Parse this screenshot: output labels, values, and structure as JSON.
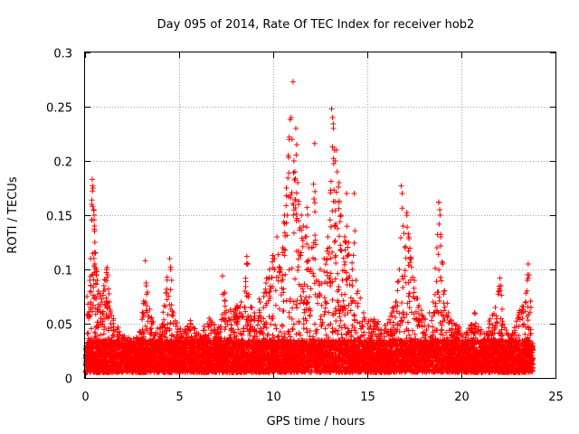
{
  "chart_data": {
    "type": "scatter",
    "title": "Day 095 of 2014, Rate Of TEC Index for receiver hob2",
    "xlabel": "GPS time / hours",
    "ylabel": "ROTI / TECUs",
    "xlim": [
      0,
      25
    ],
    "ylim": [
      0,
      0.3
    ],
    "x_ticks": [
      0,
      5,
      10,
      15,
      20,
      25
    ],
    "y_ticks": [
      0,
      0.05,
      0.1,
      0.15,
      0.2,
      0.25,
      0.3
    ],
    "x_tick_labels": [
      "0",
      "5",
      "10",
      "15",
      "20",
      "25"
    ],
    "y_tick_labels": [
      "0",
      "0.05",
      "0.1",
      "0.15",
      "0.2",
      "0.25",
      "0.3"
    ],
    "grid": true,
    "marker": "plus",
    "color": "#ff0000",
    "series": [
      {
        "points": [
          [
            0.1,
            0.075
          ],
          [
            0.15,
            0.068
          ],
          [
            0.2,
            0.055
          ],
          [
            0.25,
            0.09
          ],
          [
            0.3,
            0.11
          ],
          [
            0.35,
            0.16
          ],
          [
            0.38,
            0.183
          ],
          [
            0.4,
            0.177
          ],
          [
            0.42,
            0.175
          ],
          [
            0.45,
            0.155
          ],
          [
            0.48,
            0.15
          ],
          [
            0.5,
            0.14
          ],
          [
            0.52,
            0.125
          ],
          [
            0.55,
            0.115
          ],
          [
            0.6,
            0.1
          ],
          [
            0.65,
            0.09
          ],
          [
            0.7,
            0.08
          ],
          [
            0.8,
            0.075
          ],
          [
            0.9,
            0.07
          ],
          [
            1.0,
            0.085
          ],
          [
            1.1,
            0.09
          ],
          [
            1.15,
            0.1
          ],
          [
            1.2,
            0.095
          ],
          [
            1.25,
            0.082
          ],
          [
            1.3,
            0.07
          ],
          [
            1.35,
            0.06
          ],
          [
            1.5,
            0.05
          ],
          [
            1.7,
            0.045
          ],
          [
            2.0,
            0.035
          ],
          [
            2.5,
            0.03
          ],
          [
            3.0,
            0.04
          ],
          [
            3.2,
            0.108
          ],
          [
            3.25,
            0.085
          ],
          [
            3.5,
            0.055
          ],
          [
            3.6,
            0.05
          ],
          [
            4.0,
            0.045
          ],
          [
            4.5,
            0.11
          ],
          [
            4.55,
            0.1
          ],
          [
            4.6,
            0.09
          ],
          [
            4.7,
            0.06
          ],
          [
            5.0,
            0.04
          ],
          [
            5.5,
            0.045
          ],
          [
            5.6,
            0.05
          ],
          [
            6.0,
            0.035
          ],
          [
            6.5,
            0.05
          ],
          [
            6.6,
            0.055
          ],
          [
            7.0,
            0.04
          ],
          [
            7.2,
            0.045
          ],
          [
            7.3,
            0.094
          ],
          [
            7.5,
            0.06
          ],
          [
            8.0,
            0.06
          ],
          [
            8.3,
            0.07
          ],
          [
            8.5,
            0.08
          ],
          [
            8.6,
            0.112
          ],
          [
            8.65,
            0.105
          ],
          [
            8.8,
            0.065
          ],
          [
            9.0,
            0.06
          ],
          [
            9.3,
            0.07
          ],
          [
            9.5,
            0.075
          ],
          [
            9.8,
            0.1
          ],
          [
            10.0,
            0.11
          ],
          [
            10.2,
            0.13
          ],
          [
            10.4,
            0.1
          ],
          [
            10.5,
            0.12
          ],
          [
            10.6,
            0.15
          ],
          [
            10.7,
            0.175
          ],
          [
            10.8,
            0.205
          ],
          [
            10.85,
            0.222
          ],
          [
            10.9,
            0.238
          ],
          [
            10.95,
            0.24
          ],
          [
            11.0,
            0.22
          ],
          [
            11.05,
            0.273
          ],
          [
            11.1,
            0.2
          ],
          [
            11.15,
            0.19
          ],
          [
            11.2,
            0.23
          ],
          [
            11.25,
            0.215
          ],
          [
            11.3,
            0.18
          ],
          [
            11.35,
            0.16
          ],
          [
            11.5,
            0.15
          ],
          [
            11.6,
            0.14
          ],
          [
            11.7,
            0.13
          ],
          [
            11.8,
            0.157
          ],
          [
            11.9,
            0.12
          ],
          [
            12.0,
            0.1
          ],
          [
            12.2,
            0.216
          ],
          [
            12.3,
            0.09
          ],
          [
            12.5,
            0.1
          ],
          [
            12.7,
            0.11
          ],
          [
            12.9,
            0.13
          ],
          [
            13.0,
            0.12
          ],
          [
            13.1,
            0.248
          ],
          [
            13.15,
            0.24
          ],
          [
            13.2,
            0.23
          ],
          [
            13.25,
            0.21
          ],
          [
            13.3,
            0.2
          ],
          [
            13.35,
            0.21
          ],
          [
            13.4,
            0.19
          ],
          [
            13.5,
            0.18
          ],
          [
            13.6,
            0.15
          ],
          [
            13.8,
            0.13
          ],
          [
            13.9,
            0.17
          ],
          [
            14.0,
            0.125
          ],
          [
            14.2,
            0.1
          ],
          [
            14.3,
            0.17
          ],
          [
            14.4,
            0.09
          ],
          [
            14.5,
            0.08
          ],
          [
            14.8,
            0.06
          ],
          [
            15.0,
            0.05
          ],
          [
            15.5,
            0.05
          ],
          [
            16.0,
            0.045
          ],
          [
            16.3,
            0.06
          ],
          [
            16.5,
            0.07
          ],
          [
            16.7,
            0.1
          ],
          [
            16.8,
            0.177
          ],
          [
            16.85,
            0.17
          ],
          [
            16.9,
            0.14
          ],
          [
            17.0,
            0.12
          ],
          [
            17.1,
            0.15
          ],
          [
            17.2,
            0.13
          ],
          [
            17.3,
            0.11
          ],
          [
            17.5,
            0.09
          ],
          [
            17.7,
            0.065
          ],
          [
            18.0,
            0.055
          ],
          [
            18.3,
            0.06
          ],
          [
            18.5,
            0.07
          ],
          [
            18.7,
            0.12
          ],
          [
            18.8,
            0.162
          ],
          [
            18.85,
            0.155
          ],
          [
            18.9,
            0.13
          ],
          [
            19.0,
            0.105
          ],
          [
            19.1,
            0.08
          ],
          [
            19.3,
            0.06
          ],
          [
            19.5,
            0.05
          ],
          [
            19.8,
            0.045
          ],
          [
            20.2,
            0.035
          ],
          [
            20.5,
            0.045
          ],
          [
            20.7,
            0.06
          ],
          [
            21.0,
            0.04
          ],
          [
            21.5,
            0.05
          ],
          [
            21.8,
            0.065
          ],
          [
            22.0,
            0.08
          ],
          [
            22.05,
            0.092
          ],
          [
            22.1,
            0.085
          ],
          [
            22.2,
            0.05
          ],
          [
            22.5,
            0.035
          ],
          [
            22.8,
            0.04
          ],
          [
            23.0,
            0.055
          ],
          [
            23.2,
            0.06
          ],
          [
            23.4,
            0.07
          ],
          [
            23.5,
            0.09
          ],
          [
            23.55,
            0.105
          ],
          [
            23.6,
            0.095
          ],
          [
            23.7,
            0.065
          ],
          [
            23.75,
            0.03
          ]
        ]
      }
    ]
  }
}
